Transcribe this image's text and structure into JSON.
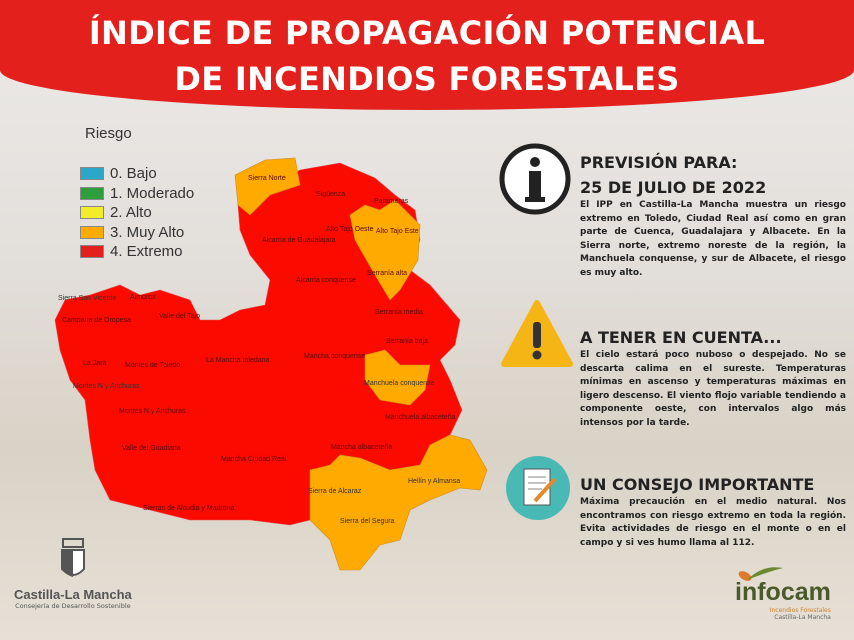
{
  "header": {
    "line1": "ÍNDICE DE PROPAGACIÓN POTENCIAL",
    "line2": "DE INCENDIOS FORESTALES"
  },
  "legend": {
    "title": "Riesgo",
    "items": [
      {
        "label": "0. Bajo",
        "color": "#2aa7c9"
      },
      {
        "label": "1. Moderado",
        "color": "#2f9e3c"
      },
      {
        "label": "2. Alto",
        "color": "#f2ec2a"
      },
      {
        "label": "3. Muy Alto",
        "color": "#ffaa00"
      },
      {
        "label": "4. Extremo",
        "color": "#e3201b"
      }
    ]
  },
  "map": {
    "colors": {
      "extremo": "#fb0a00",
      "muy_alto": "#ffaa00"
    },
    "regions": [
      "Sierra Norte",
      "Sigüenza",
      "Parameras",
      "Alto Tajo Oeste",
      "Alto Tajo Este",
      "Alcarria de Guadalajara",
      "Serranía alta",
      "Alcarria conquense",
      "Sierra San Vicente",
      "Almorox",
      "Campana de Oropesa",
      "Valle del Tajo",
      "Serranía media",
      "Serranía baja",
      "La Jara",
      "Montes de Toledo",
      "La Mancha toledana",
      "Mancha conquense",
      "Montes N y Anchuras",
      "Manchuela conquense",
      "Montes N y Anchuras",
      "Manchuela albaceteña",
      "Valle del Guadiana",
      "Mancha Ciudad Real",
      "Mancha albaceteña",
      "Hellín y Almansa",
      "Sierra de Alcaraz",
      "Sierras de Alcudia y Madrona",
      "Sierra del Segura"
    ]
  },
  "sections": [
    {
      "title": "PREVISIÓN PARA:",
      "subtitle": "25 DE JULIO DE 2022",
      "text": "El IPP en Castilla-La Mancha muestra un riesgo extremo en Toledo, Ciudad Real así como en gran parte de Cuenca, Guadalajara y Albacete. En la Sierra norte, extremo noreste de la región, la Manchuela conquense, y sur de Albacete, el riesgo es muy alto.",
      "icon": "info-icon"
    },
    {
      "title": "A TENER EN CUENTA...",
      "text": "El cielo estará poco nuboso o despejado. No se descarta calima en el sureste. Temperaturas mínimas en ascenso y temperaturas máximas en ligero descenso. El viento flojo variable tendiendo a componente oeste, con intervalos algo más intensos por la tarde.",
      "icon": "warning-icon"
    },
    {
      "title": "UN CONSEJO IMPORTANTE",
      "text": "Máxima precaución en el medio natural. Nos encontramos con riesgo extremo en toda la región. Evita actividades de riesgo en el monte o en el campo y si ves humo llama al 112.",
      "icon": "document-icon"
    }
  ],
  "logos": {
    "clm_name": "Castilla-La Mancha",
    "clm_sub": "Consejería de Desarrollo Sostenible",
    "infocam_name": "infocam",
    "infocam_sub1": "Incendios Forestales",
    "infocam_sub2": "Castilla-La Mancha"
  }
}
